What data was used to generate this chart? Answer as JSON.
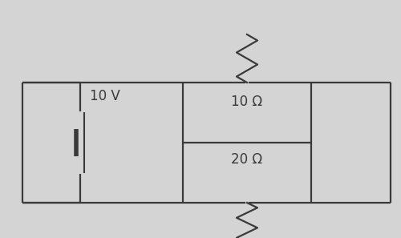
{
  "bg_color": "#d4d4d4",
  "line_color": "#3a3a3a",
  "text_color": "#3a3a3a",
  "voltage_label": "10 V",
  "r1_label": "10 Ω",
  "r2_label": "20 Ω",
  "fig_width": 5.0,
  "fig_height": 2.97,
  "dpi": 100,
  "lw": 1.6
}
